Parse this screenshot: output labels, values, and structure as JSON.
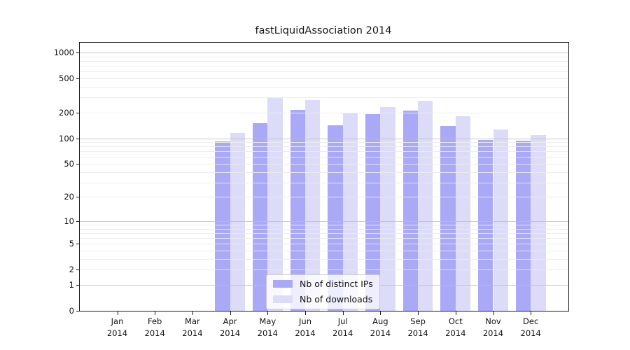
{
  "chart_data": {
    "type": "bar",
    "title": "fastLiquidAssociation 2014",
    "categories": [
      "Jan",
      "Feb",
      "Mar",
      "Apr",
      "May",
      "Jun",
      "Jul",
      "Aug",
      "Sep",
      "Oct",
      "Nov",
      "Dec"
    ],
    "year": "2014",
    "series": [
      {
        "name": "Nb of distinct IPs",
        "color": "#a9a9f7",
        "values": [
          0,
          0,
          0,
          92,
          150,
          215,
          143,
          190,
          211,
          139,
          96,
          94
        ]
      },
      {
        "name": "Nb of downloads",
        "color": "#dcdcf9",
        "values": [
          0,
          0,
          0,
          116,
          303,
          280,
          194,
          232,
          275,
          181,
          126,
          108
        ]
      }
    ],
    "xlabel": "",
    "ylabel": "",
    "y_scale": "log10(value+1)",
    "y_ticks": [
      0,
      1,
      2,
      5,
      10,
      20,
      50,
      100,
      200,
      500,
      1000
    ],
    "ylim": [
      0,
      1300
    ],
    "grid": "on",
    "legend_position": "lower center",
    "colors": {
      "major_grid": "#c5c5c5",
      "minor_grid": "#ededed",
      "axis": "#1a1a1a"
    }
  }
}
